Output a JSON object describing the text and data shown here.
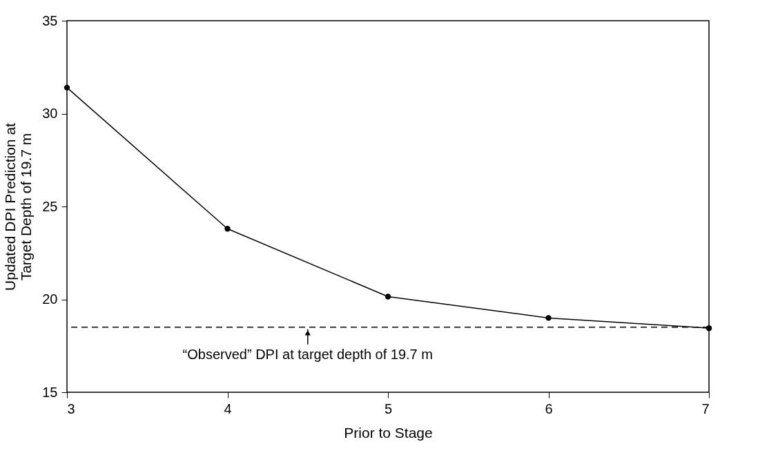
{
  "chart_data": {
    "type": "line",
    "xlabel": "Prior to Stage",
    "ylabel": "Updated DPI Prediction at\nTarget Depth of 19.7 m",
    "x": [
      3,
      4,
      5,
      6,
      7
    ],
    "series": [
      {
        "color": "#000000",
        "values": [
          31.4,
          23.8,
          20.15,
          19.0,
          18.45
        ]
      }
    ],
    "xlim": [
      3,
      7
    ],
    "xticks": [
      3,
      4,
      5,
      6,
      7
    ],
    "ylim": [
      15,
      35
    ],
    "yticks": [
      15,
      20,
      25,
      30,
      35
    ],
    "grid": false,
    "marker": "circle",
    "line_style": "solid",
    "ref_lines": [
      {
        "axis": "y",
        "value": 18.5,
        "line_style": "dashed",
        "color": "#000000"
      }
    ],
    "annotations": [
      "“Observed” DPI at target depth of 19.7 m"
    ]
  }
}
